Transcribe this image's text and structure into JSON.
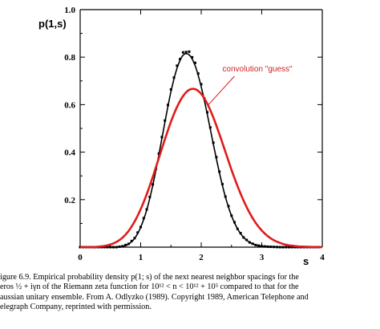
{
  "chart_data": {
    "type": "line",
    "xlabel": "s",
    "ylabel": "p(1,s)",
    "xlim": [
      0,
      4
    ],
    "ylim": [
      0,
      1.0
    ],
    "x_ticks": [
      0,
      1,
      2,
      3,
      4
    ],
    "y_ticks": [
      0.2,
      0.4,
      0.6,
      0.8,
      1.0
    ],
    "x_tick_labels": [
      "0",
      "1",
      "2",
      "3",
      "4"
    ],
    "y_tick_labels": [
      "0.2",
      "0.4",
      "0.6",
      "0.8",
      "1.0"
    ],
    "grid": false,
    "annotation": "convolution \"guess\"",
    "series": [
      {
        "style": "points",
        "color": "#000000",
        "x": [
          0.0,
          0.1,
          0.2,
          0.3,
          0.4,
          0.5,
          0.6,
          0.7,
          0.8,
          0.9,
          1.0,
          1.1,
          1.2,
          1.3,
          1.4,
          1.5,
          1.6,
          1.7,
          1.8,
          1.9,
          2.0,
          2.1,
          2.2,
          2.3,
          2.4,
          2.5,
          2.6,
          2.7,
          2.8,
          2.9,
          3.0,
          3.1,
          3.2,
          3.3,
          3.4,
          3.5,
          3.6,
          3.7,
          3.8,
          3.9,
          4.0
        ],
        "values": [
          0.0,
          0.0,
          0.0,
          0.0,
          0.0,
          0.0,
          0.0,
          0.004,
          0.014,
          0.038,
          0.085,
          0.159,
          0.264,
          0.394,
          0.533,
          0.664,
          0.764,
          0.82,
          0.823,
          0.776,
          0.686,
          0.568,
          0.44,
          0.318,
          0.213,
          0.133,
          0.077,
          0.041,
          0.02,
          0.009,
          0.004,
          0.002,
          0.001,
          0.0,
          0.0,
          0.0,
          0.0,
          0.0,
          0.0,
          0.0,
          0.0
        ]
      },
      {
        "style": "line",
        "color": "#000000",
        "x": [
          0.0,
          0.1,
          0.2,
          0.3,
          0.4,
          0.5,
          0.6,
          0.7,
          0.8,
          0.9,
          1.0,
          1.1,
          1.2,
          1.3,
          1.4,
          1.5,
          1.6,
          1.7,
          1.8,
          1.9,
          2.0,
          2.1,
          2.2,
          2.3,
          2.4,
          2.5,
          2.6,
          2.7,
          2.8,
          2.9,
          3.0,
          3.1,
          3.2,
          3.3,
          3.4,
          3.5,
          3.6,
          3.7,
          3.8,
          3.9,
          4.0
        ],
        "values": [
          0.0,
          0.0,
          0.0,
          0.0,
          0.0,
          0.0,
          0.0,
          0.003,
          0.013,
          0.037,
          0.084,
          0.157,
          0.261,
          0.389,
          0.526,
          0.655,
          0.753,
          0.808,
          0.81,
          0.764,
          0.675,
          0.56,
          0.434,
          0.314,
          0.211,
          0.132,
          0.077,
          0.041,
          0.02,
          0.009,
          0.004,
          0.002,
          0.001,
          0.0,
          0.0,
          0.0,
          0.0,
          0.0,
          0.0,
          0.0,
          0.0
        ]
      },
      {
        "style": "line",
        "color": "#e01b1b",
        "x": [
          0.0,
          0.1,
          0.2,
          0.3,
          0.4,
          0.5,
          0.6,
          0.7,
          0.8,
          0.9,
          1.0,
          1.1,
          1.2,
          1.3,
          1.4,
          1.5,
          1.6,
          1.7,
          1.8,
          1.9,
          2.0,
          2.1,
          2.2,
          2.3,
          2.4,
          2.5,
          2.6,
          2.7,
          2.8,
          2.9,
          3.0,
          3.1,
          3.2,
          3.3,
          3.4,
          3.5,
          3.6,
          3.7,
          3.8,
          3.9,
          4.0
        ],
        "values": [
          0.0,
          0.0,
          0.0,
          0.002,
          0.005,
          0.011,
          0.022,
          0.04,
          0.068,
          0.108,
          0.16,
          0.223,
          0.296,
          0.375,
          0.454,
          0.528,
          0.59,
          0.636,
          0.662,
          0.665,
          0.645,
          0.604,
          0.546,
          0.476,
          0.401,
          0.326,
          0.257,
          0.196,
          0.144,
          0.102,
          0.07,
          0.046,
          0.029,
          0.018,
          0.01,
          0.006,
          0.003,
          0.002,
          0.001,
          0.0,
          0.0
        ]
      }
    ]
  },
  "caption": {
    "lines": [
      "igure 6.9.  Empirical probability density p(1; s) of the next nearest neighbor spacings for the",
      "eros ½ + iγn of the Riemann zeta function for 10¹² < n < 10¹² + 10⁵ compared to that for the",
      "aussian unitary ensemble. From A. Odlyzko (1989). Copyright 1989, American Telephone and",
      "elegraph Company, reprinted with permission."
    ]
  }
}
